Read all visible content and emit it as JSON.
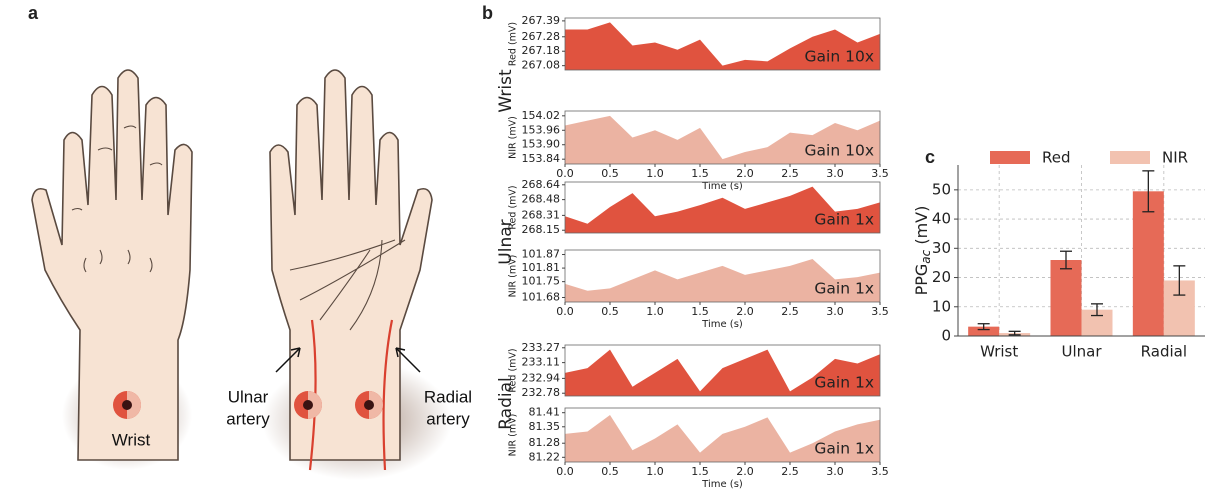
{
  "panel_labels": [
    "a",
    "b",
    "c"
  ],
  "illustration": {
    "wrist_label": "Wrist",
    "ulnar_label": [
      "Ulnar",
      "artery"
    ],
    "radial_label": [
      "Radial",
      "artery"
    ]
  },
  "chart_data": [
    {
      "type": "area",
      "row_label": "Wrist",
      "ylabel": "Red (mV)",
      "annotation": "Gain 10x",
      "color": "#e0533f",
      "x": [
        0,
        0.25,
        0.5,
        0.75,
        1,
        1.25,
        1.5,
        1.75,
        2,
        2.25,
        2.5,
        2.75,
        3,
        3.25,
        3.5
      ],
      "values": [
        267.33,
        267.33,
        267.38,
        267.22,
        267.24,
        267.19,
        267.26,
        267.08,
        267.12,
        267.11,
        267.2,
        267.28,
        267.33,
        267.24,
        267.3
      ],
      "xlim": [
        0,
        3.5
      ],
      "ylim": [
        267.05,
        267.41
      ],
      "yticks": [
        267.08,
        267.18,
        267.28,
        267.39
      ]
    },
    {
      "type": "area",
      "ylabel": "NIR (mV)",
      "annotation": "Gain 10x",
      "color": "#ebb3a2",
      "xlabel": "Time (s)",
      "x": [
        0,
        0.25,
        0.5,
        0.75,
        1,
        1.25,
        1.5,
        1.75,
        2,
        2.25,
        2.5,
        2.75,
        3,
        3.25,
        3.5
      ],
      "values": [
        153.98,
        154.0,
        154.02,
        153.93,
        153.96,
        153.92,
        153.97,
        153.84,
        153.87,
        153.89,
        153.95,
        153.94,
        153.99,
        153.96,
        154.0
      ],
      "xlim": [
        0,
        3.5
      ],
      "ylim": [
        153.82,
        154.04
      ],
      "yticks": [
        153.84,
        {
          "value": 153.9,
          "label": "153.90"
        },
        153.96,
        154.02
      ],
      "xticks": [
        {
          "value": 0,
          "label": "0.0"
        },
        0.5,
        {
          "value": 1,
          "label": "1.0"
        },
        1.5,
        {
          "value": 2,
          "label": "2.0"
        },
        2.5,
        {
          "value": 3,
          "label": "3.0"
        },
        3.5
      ]
    },
    {
      "type": "area",
      "row_label": "Ulnar",
      "ylabel": "Red (mV)",
      "annotation": "Gain 1x",
      "color": "#e0533f",
      "x": [
        0,
        0.25,
        0.5,
        0.75,
        1,
        1.25,
        1.5,
        1.75,
        2,
        2.25,
        2.5,
        2.75,
        3,
        3.25,
        3.5
      ],
      "values": [
        268.3,
        268.22,
        268.4,
        268.55,
        268.3,
        268.35,
        268.42,
        268.5,
        268.38,
        268.45,
        268.52,
        268.62,
        268.35,
        268.38,
        268.45
      ],
      "xlim": [
        0,
        3.5
      ],
      "ylim": [
        268.12,
        268.67
      ],
      "yticks": [
        268.15,
        268.31,
        268.48,
        268.64
      ]
    },
    {
      "type": "area",
      "ylabel": "NIR (mV)",
      "annotation": "Gain 1x",
      "color": "#ebb3a2",
      "xlabel": "Time (s)",
      "x": [
        0,
        0.25,
        0.5,
        0.75,
        1,
        1.25,
        1.5,
        1.75,
        2,
        2.25,
        2.5,
        2.75,
        3,
        3.25,
        3.5
      ],
      "values": [
        101.74,
        101.71,
        101.72,
        101.76,
        101.8,
        101.76,
        101.79,
        101.82,
        101.78,
        101.8,
        101.82,
        101.85,
        101.76,
        101.77,
        101.79
      ],
      "xlim": [
        0,
        3.5
      ],
      "ylim": [
        101.66,
        101.89
      ],
      "yticks": [
        101.68,
        101.75,
        101.81,
        101.87
      ],
      "xticks": [
        {
          "value": 0,
          "label": "0.0"
        },
        0.5,
        {
          "value": 1,
          "label": "1.0"
        },
        1.5,
        {
          "value": 2,
          "label": "2.0"
        },
        2.5,
        {
          "value": 3,
          "label": "3.0"
        },
        3.5
      ]
    },
    {
      "type": "area",
      "row_label": "Radial",
      "ylabel": "Red (mV)",
      "annotation": "Gain 1x",
      "color": "#e0533f",
      "x": [
        0,
        0.25,
        0.5,
        0.75,
        1,
        1.25,
        1.5,
        1.75,
        2,
        2.25,
        2.5,
        2.75,
        3,
        3.25,
        3.5
      ],
      "values": [
        233.0,
        233.05,
        233.25,
        232.85,
        233.0,
        233.15,
        232.8,
        233.05,
        233.15,
        233.25,
        232.8,
        232.95,
        233.15,
        233.1,
        233.2
      ],
      "xlim": [
        0,
        3.5
      ],
      "ylim": [
        232.75,
        233.3
      ],
      "yticks": [
        232.78,
        232.94,
        233.11,
        233.27
      ]
    },
    {
      "type": "area",
      "ylabel": "NIR (mV)",
      "annotation": "Gain 1x",
      "color": "#ebb3a2",
      "xlabel": "Time (s)",
      "x": [
        0,
        0.25,
        0.5,
        0.75,
        1,
        1.25,
        1.5,
        1.75,
        2,
        2.25,
        2.5,
        2.75,
        3,
        3.25,
        3.5
      ],
      "values": [
        81.32,
        81.33,
        81.4,
        81.25,
        81.3,
        81.36,
        81.24,
        81.32,
        81.35,
        81.39,
        81.24,
        81.28,
        81.33,
        81.36,
        81.38
      ],
      "xlim": [
        0,
        3.5
      ],
      "ylim": [
        81.2,
        81.43
      ],
      "yticks": [
        81.22,
        81.28,
        81.35,
        81.41
      ],
      "xticks": [
        {
          "value": 0,
          "label": "0.0"
        },
        0.5,
        {
          "value": 1,
          "label": "1.0"
        },
        1.5,
        {
          "value": 2,
          "label": "2.0"
        },
        2.5,
        {
          "value": 3,
          "label": "3.0"
        },
        3.5
      ]
    },
    {
      "type": "bar",
      "ylabel": "PPG",
      "ylabel_subscript": "ac",
      "ylabel_unit": " (mV)",
      "categories": [
        "Wrist",
        "Ulnar",
        "Radial"
      ],
      "series": [
        {
          "name": "Red",
          "color": "#e66a57",
          "values": [
            3.2,
            26,
            49.5
          ],
          "errors": [
            1,
            3,
            7
          ]
        },
        {
          "name": "NIR",
          "color": "#f2c2b0",
          "values": [
            1,
            9,
            19
          ],
          "errors": [
            0.6,
            2,
            5
          ]
        }
      ],
      "ylim": [
        0,
        58.5
      ],
      "yticks": [
        0,
        10,
        20,
        30,
        40,
        50
      ],
      "grid": true,
      "legend": "top"
    }
  ]
}
